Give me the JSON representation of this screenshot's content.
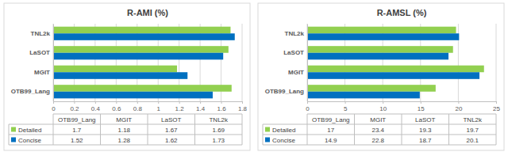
{
  "chart_data": [
    {
      "type": "bar",
      "orientation": "horizontal",
      "title": "R-AMI (%)",
      "categories": [
        "OTB99_Lang",
        "MGIT",
        "LaSOT",
        "TNL2k"
      ],
      "series": [
        {
          "name": "Detailed",
          "color": "#92d050",
          "values": [
            1.7,
            1.18,
            1.67,
            1.69
          ]
        },
        {
          "name": "Concise",
          "color": "#0070c0",
          "values": [
            1.52,
            1.28,
            1.62,
            1.73
          ]
        }
      ],
      "xlim": [
        0,
        1.8
      ],
      "xticks": [
        0,
        0.2,
        0.4,
        0.6,
        0.8,
        1,
        1.2,
        1.4,
        1.6,
        1.8
      ],
      "grid": true
    },
    {
      "type": "bar",
      "orientation": "horizontal",
      "title": "R-AMSL (%)",
      "categories": [
        "OTB99_Lang",
        "MGIT",
        "LaSOT",
        "TNL2k"
      ],
      "series": [
        {
          "name": "Detailed",
          "color": "#92d050",
          "values": [
            17,
            23.4,
            19.3,
            19.7
          ]
        },
        {
          "name": "Concise",
          "color": "#0070c0",
          "values": [
            14.9,
            22.8,
            18.7,
            20.1
          ]
        }
      ],
      "xlim": [
        0,
        25
      ],
      "xticks": [
        0,
        5,
        10,
        15,
        20,
        25
      ],
      "grid": true
    }
  ]
}
